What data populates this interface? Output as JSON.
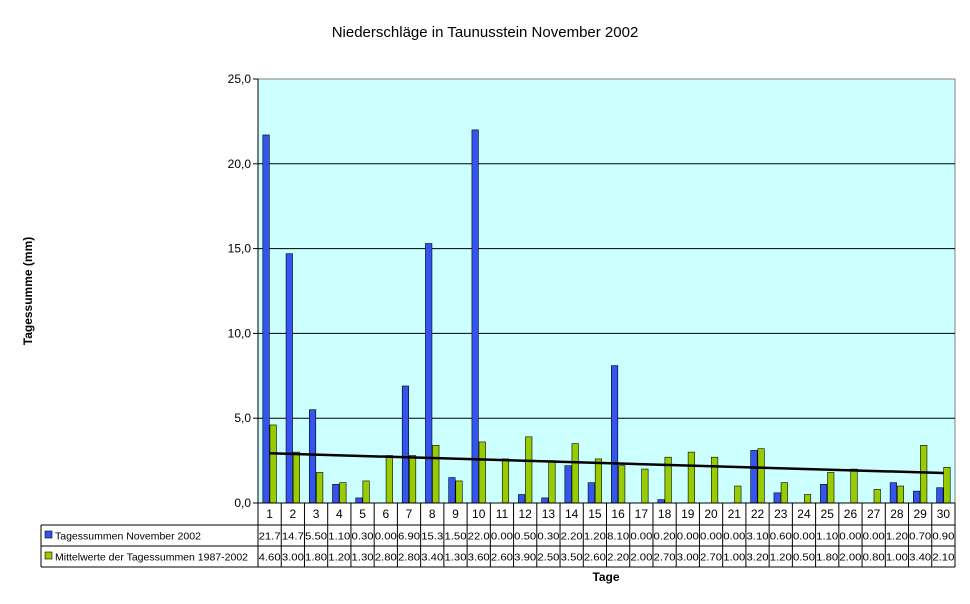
{
  "chart_data": {
    "type": "bar",
    "title": "Niederschläge in Taunusstein November 2002",
    "xlabel": "Tage",
    "ylabel": "Tagessumme (mm)",
    "ylim": [
      0,
      25
    ],
    "yticks": [
      0,
      5,
      10,
      15,
      20,
      25
    ],
    "ytick_labels": [
      "0,0",
      "5,0",
      "10,0",
      "15,0",
      "20,0",
      "25,0"
    ],
    "grid": true,
    "legend": "data-table",
    "trendline": {
      "series": "Mittelwerte der Tagessummen 1987-2002",
      "type": "linear",
      "color": "#000000"
    },
    "categories": [
      "1",
      "2",
      "3",
      "4",
      "5",
      "6",
      "7",
      "8",
      "9",
      "10",
      "11",
      "12",
      "13",
      "14",
      "15",
      "16",
      "17",
      "18",
      "19",
      "20",
      "21",
      "22",
      "23",
      "24",
      "25",
      "26",
      "27",
      "28",
      "29",
      "30"
    ],
    "series": [
      {
        "name": "Tagessummen November 2002",
        "color": "#3355ee",
        "values": [
          21.7,
          14.7,
          5.5,
          1.1,
          0.3,
          0.0,
          6.9,
          15.3,
          1.5,
          22.0,
          0.0,
          0.5,
          0.3,
          2.2,
          1.2,
          8.1,
          0.0,
          0.2,
          0.0,
          0.0,
          0.0,
          3.1,
          0.6,
          0.0,
          1.1,
          0.0,
          0.0,
          1.2,
          0.7,
          0.9
        ],
        "labels": [
          "21.7",
          "14.7",
          "5.50",
          "1.10",
          "0.30",
          "0.00",
          "6.90",
          "15.3",
          "1.50",
          "22.0",
          "0.00",
          "0.50",
          "0.30",
          "2.20",
          "1.20",
          "8.10",
          "0.00",
          "0.20",
          "0.00",
          "0.00",
          "0.00",
          "3.10",
          "0.60",
          "0.00",
          "1.10",
          "0.00",
          "0.00",
          "1.20",
          "0.70",
          "0.90"
        ]
      },
      {
        "name": "Mittelwerte der Tagessummen 1987-2002",
        "color": "#99cc00",
        "values": [
          4.6,
          3.0,
          1.8,
          1.2,
          1.3,
          2.8,
          2.8,
          3.4,
          1.3,
          3.6,
          2.6,
          3.9,
          2.5,
          3.5,
          2.6,
          2.2,
          2.0,
          2.7,
          3.0,
          2.7,
          1.0,
          3.2,
          1.2,
          0.5,
          1.8,
          2.0,
          0.8,
          1.0,
          3.4,
          2.1
        ],
        "labels": [
          "4.60",
          "3.00",
          "1.80",
          "1.20",
          "1.30",
          "2.80",
          "2.80",
          "3.40",
          "1.30",
          "3.60",
          "2.60",
          "3.90",
          "2.50",
          "3.50",
          "2.60",
          "2.20",
          "2.00",
          "2.70",
          "3.00",
          "2.70",
          "1.00",
          "3.20",
          "1.20",
          "0.50",
          "1.80",
          "2.00",
          "0.80",
          "1.00",
          "3.40",
          "2.10"
        ]
      }
    ]
  }
}
